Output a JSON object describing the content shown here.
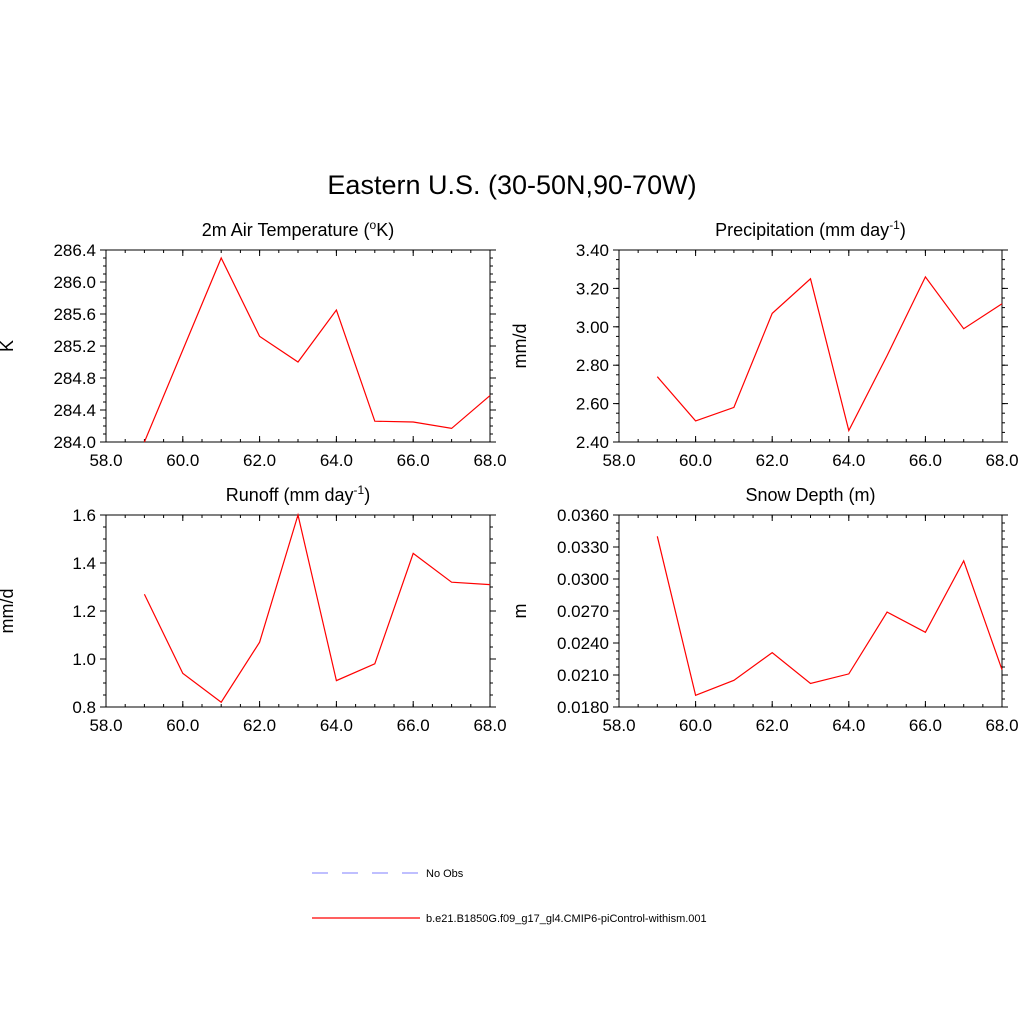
{
  "figure": {
    "title": "Eastern U.S. (30-50N,90-70W)"
  },
  "chart_data": [
    {
      "type": "line",
      "title": "2m Air Temperature (",
      "title_sup": "o",
      "title_tail": "K)",
      "ylabel": "K",
      "xlim": [
        58.0,
        68.0
      ],
      "ylim": [
        284.0,
        286.4
      ],
      "xticks": [
        58.0,
        60.0,
        62.0,
        64.0,
        66.0,
        68.0
      ],
      "yticks": [
        284.0,
        284.4,
        284.8,
        285.2,
        285.6,
        286.0,
        286.4
      ],
      "xdec": 1,
      "ydec": 1,
      "color": "#ff0000",
      "x": [
        59,
        60,
        61,
        62,
        63,
        64,
        65,
        66,
        67,
        68
      ],
      "y": [
        284.0,
        285.15,
        286.3,
        285.32,
        285.0,
        285.65,
        284.26,
        284.25,
        284.17,
        284.58
      ]
    },
    {
      "type": "line",
      "title": "Precipitation (mm day",
      "title_sup": "-1",
      "title_tail": ")",
      "ylabel": "mm/d",
      "xlim": [
        58.0,
        68.0
      ],
      "ylim": [
        2.4,
        3.4
      ],
      "xticks": [
        58.0,
        60.0,
        62.0,
        64.0,
        66.0,
        68.0
      ],
      "yticks": [
        2.4,
        2.6,
        2.8,
        3.0,
        3.2,
        3.4
      ],
      "xdec": 1,
      "ydec": 2,
      "color": "#ff0000",
      "x": [
        59,
        60,
        61,
        62,
        63,
        64,
        65,
        66,
        67,
        68
      ],
      "y": [
        2.74,
        2.51,
        2.58,
        3.07,
        3.25,
        2.46,
        2.85,
        3.26,
        2.99,
        3.12
      ]
    },
    {
      "type": "line",
      "title": "Runoff (mm day",
      "title_sup": "-1",
      "title_tail": ")",
      "ylabel": "mm/d",
      "xlim": [
        58.0,
        68.0
      ],
      "ylim": [
        0.8,
        1.6
      ],
      "xticks": [
        58.0,
        60.0,
        62.0,
        64.0,
        66.0,
        68.0
      ],
      "yticks": [
        0.8,
        1.0,
        1.2,
        1.4,
        1.6
      ],
      "xdec": 1,
      "ydec": 1,
      "color": "#ff0000",
      "x": [
        59,
        60,
        61,
        62,
        63,
        64,
        65,
        66,
        67,
        68
      ],
      "y": [
        1.27,
        0.94,
        0.82,
        1.07,
        1.6,
        0.91,
        0.98,
        1.44,
        1.32,
        1.31
      ]
    },
    {
      "type": "line",
      "title": "Snow Depth (m)",
      "title_sup": "",
      "title_tail": "",
      "ylabel": "m",
      "xlim": [
        58.0,
        68.0
      ],
      "ylim": [
        0.018,
        0.036
      ],
      "xticks": [
        58.0,
        60.0,
        62.0,
        64.0,
        66.0,
        68.0
      ],
      "yticks": [
        0.018,
        0.021,
        0.024,
        0.027,
        0.03,
        0.033,
        0.036
      ],
      "xdec": 1,
      "ydec": 4,
      "color": "#ff0000",
      "x": [
        59,
        60,
        61,
        62,
        63,
        64,
        65,
        66,
        67,
        68
      ],
      "y": [
        0.034,
        0.0191,
        0.0205,
        0.0231,
        0.0202,
        0.0211,
        0.0269,
        0.025,
        0.0317,
        0.0215
      ]
    }
  ],
  "legend": {
    "items": [
      {
        "label": "No Obs",
        "color": "#9999ff",
        "style": "dashed"
      },
      {
        "label": "b.e21.B1850G.f09_g17_gl4.CMIP6-piControl-withism.001",
        "color": "#ff0000",
        "style": "solid"
      }
    ]
  }
}
